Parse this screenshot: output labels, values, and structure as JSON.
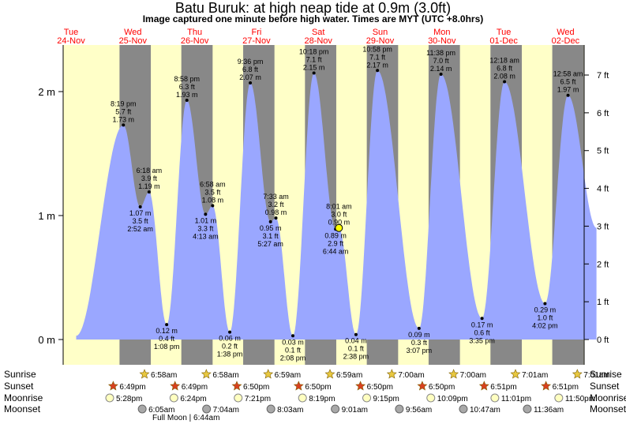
{
  "header": {
    "title": "Batu Buruk: at high  neap tide at 0.9m (3.0ft)",
    "subtitle": "Image captured one minute before high water. Times are MYT (UTC +8.0hrs)"
  },
  "colors": {
    "day": "#ffffc8",
    "night": "#888888",
    "tide_fill": "#9aa7ff",
    "date_text": "#ff0000",
    "sunrise_star": "#e8c840",
    "sunset_star": "#d84020",
    "moonrise": "#ffffc0",
    "moonset": "#a8a8a8",
    "current_marker": "#ffff00"
  },
  "chart_data": {
    "type": "area",
    "title": "Batu Buruk: at high  neap tide at 0.9m (3.0ft)",
    "xlim_hours": [
      -3,
      219
    ],
    "ylim_m": [
      -0.02,
      2.4
    ],
    "days": [
      {
        "dow": "Tue",
        "date": "24-Nov"
      },
      {
        "dow": "Wed",
        "date": "25-Nov"
      },
      {
        "dow": "Thu",
        "date": "26-Nov"
      },
      {
        "dow": "Fri",
        "date": "27-Nov"
      },
      {
        "dow": "Sat",
        "date": "28-Nov"
      },
      {
        "dow": "Sun",
        "date": "29-Nov"
      },
      {
        "dow": "Mon",
        "date": "30-Nov"
      },
      {
        "dow": "Tue",
        "date": "01-Dec"
      },
      {
        "dow": "Wed",
        "date": "02-Dec"
      }
    ],
    "left_axis_ticks": [
      {
        "value": 0,
        "label": "0 m"
      },
      {
        "value": 1,
        "label": "1 m"
      },
      {
        "value": 2,
        "label": "2 m"
      }
    ],
    "right_axis_ticks": [
      {
        "value": 0,
        "label": "0 ft"
      },
      {
        "value": 1,
        "label": "1 ft"
      },
      {
        "value": 2,
        "label": "2 ft"
      },
      {
        "value": 3,
        "label": "3 ft"
      },
      {
        "value": 4,
        "label": "4 ft"
      },
      {
        "value": 5,
        "label": "5 ft"
      },
      {
        "value": 6,
        "label": "6 ft"
      },
      {
        "value": 7,
        "label": "7 ft"
      }
    ],
    "tides": [
      {
        "h": 2.0,
        "m": 0.03,
        "type": "low",
        "labels": []
      },
      {
        "h": 20.32,
        "m": 1.73,
        "type": "high",
        "labels": [
          "8:19 pm",
          "5.7 ft",
          "1.73 m"
        ]
      },
      {
        "h": 26.87,
        "m": 1.07,
        "type": "low",
        "labels": [
          "1.07 m",
          "3.5 ft",
          "2:52 am"
        ]
      },
      {
        "h": 30.3,
        "m": 1.19,
        "type": "high",
        "labels": [
          "6:18 am",
          "3.9 ft",
          "1.19 m"
        ]
      },
      {
        "h": 37.13,
        "m": 0.12,
        "type": "low",
        "labels": [
          "0.12 m",
          "0.4 ft",
          "1:08 pm"
        ]
      },
      {
        "h": 44.97,
        "m": 1.93,
        "type": "high",
        "labels": [
          "8:58 pm",
          "6.3 ft",
          "1.93 m"
        ]
      },
      {
        "h": 52.22,
        "m": 1.01,
        "type": "low",
        "labels": [
          "1.01 m",
          "3.3 ft",
          "4:13 am"
        ]
      },
      {
        "h": 54.97,
        "m": 1.08,
        "type": "high",
        "labels": [
          "6:58 am",
          "3.5 ft",
          "1.08 m"
        ]
      },
      {
        "h": 61.63,
        "m": 0.06,
        "type": "low",
        "labels": [
          "0.06 m",
          "0.2 ft",
          "1:38 pm"
        ]
      },
      {
        "h": 69.6,
        "m": 2.07,
        "type": "high",
        "labels": [
          "9:36 pm",
          "6.8 ft",
          "2.07 m"
        ]
      },
      {
        "h": 77.45,
        "m": 0.95,
        "type": "low",
        "labels": [
          "0.95 m",
          "3.1 ft",
          "5:27 am"
        ]
      },
      {
        "h": 79.55,
        "m": 0.98,
        "type": "high",
        "labels": [
          "7:33 am",
          "3.2 ft",
          "0.98 m"
        ]
      },
      {
        "h": 86.13,
        "m": 0.03,
        "type": "low",
        "labels": [
          "0.03 m",
          "0.1 ft",
          "2:08 pm"
        ]
      },
      {
        "h": 94.3,
        "m": 2.15,
        "type": "high",
        "labels": [
          "10:18 pm",
          "7.1 ft",
          "2.15 m"
        ]
      },
      {
        "h": 102.73,
        "m": 0.89,
        "type": "low",
        "labels": [
          "0.89 m",
          "2.9 ft",
          "6:44 am"
        ]
      },
      {
        "h": 104.02,
        "m": 0.9,
        "type": "high",
        "labels": [
          "8:01 am",
          "3.0 ft",
          "0.90 m"
        ]
      },
      {
        "h": 110.63,
        "m": 0.04,
        "type": "low",
        "labels": [
          "0.04 m",
          "0.1 ft",
          "2:38 pm"
        ]
      },
      {
        "h": 118.97,
        "m": 2.17,
        "type": "high",
        "labels": [
          "10:58 pm",
          "7.1 ft",
          "2.17 m"
        ]
      },
      {
        "h": 135.12,
        "m": 0.09,
        "type": "low",
        "labels": [
          "0.09 m",
          "0.3 ft",
          "3:07 pm"
        ]
      },
      {
        "h": 143.63,
        "m": 2.14,
        "type": "high",
        "labels": [
          "11:38 pm",
          "7.0 ft",
          "2.14 m"
        ]
      },
      {
        "h": 159.58,
        "m": 0.17,
        "type": "low",
        "labels": [
          "0.17 m",
          "0.6 ft",
          "3:35 pm"
        ]
      },
      {
        "h": 168.3,
        "m": 2.08,
        "type": "high",
        "labels": [
          "12:18 am",
          "6.8 ft",
          "2.08 m"
        ]
      },
      {
        "h": 184.03,
        "m": 0.29,
        "type": "low",
        "labels": [
          "0.29 m",
          "1.0 ft",
          "4:02 pm"
        ]
      },
      {
        "h": 192.97,
        "m": 1.97,
        "type": "high",
        "labels": [
          "12:58 am",
          "6.5 ft",
          "1.97 m"
        ]
      },
      {
        "h": 204.0,
        "m": 0.9,
        "type": "low",
        "labels": []
      }
    ],
    "current_marker": {
      "h": 104.0,
      "m": 0.9
    }
  },
  "almanac": {
    "row_labels": [
      "Sunrise",
      "Sunset",
      "Moonrise",
      "Moonset"
    ],
    "sunrise": [
      {
        "h": 30.97,
        "label": "6:58am"
      },
      {
        "h": 54.97,
        "label": "6:58am"
      },
      {
        "h": 78.98,
        "label": "6:59am"
      },
      {
        "h": 102.98,
        "label": "6:59am"
      },
      {
        "h": 127.0,
        "label": "7:00am"
      },
      {
        "h": 151.0,
        "label": "7:00am"
      },
      {
        "h": 175.02,
        "label": "7:01am"
      },
      {
        "h": 199.02,
        "label": "7:01am"
      }
    ],
    "sunset": [
      {
        "h": 18.82,
        "label": "6:49pm"
      },
      {
        "h": 42.82,
        "label": "6:49pm"
      },
      {
        "h": 66.83,
        "label": "6:50pm"
      },
      {
        "h": 90.83,
        "label": "6:50pm"
      },
      {
        "h": 114.83,
        "label": "6:50pm"
      },
      {
        "h": 138.83,
        "label": "6:50pm"
      },
      {
        "h": 162.85,
        "label": "6:51pm"
      },
      {
        "h": 186.85,
        "label": "6:51pm"
      }
    ],
    "moonrise": [
      {
        "h": 17.47,
        "label": "5:28pm"
      },
      {
        "h": 42.4,
        "label": "6:24pm"
      },
      {
        "h": 67.35,
        "label": "7:21pm"
      },
      {
        "h": 92.32,
        "label": "8:19pm"
      },
      {
        "h": 117.25,
        "label": "9:15pm"
      },
      {
        "h": 142.15,
        "label": "10:09pm"
      },
      {
        "h": 167.02,
        "label": "11:01pm"
      },
      {
        "h": 191.83,
        "label": "11:50pm"
      }
    ],
    "moonset": [
      {
        "h": 30.08,
        "label": "6:05am"
      },
      {
        "h": 55.07,
        "label": "7:04am"
      },
      {
        "h": 80.05,
        "label": "8:03am"
      },
      {
        "h": 105.02,
        "label": "9:01am"
      },
      {
        "h": 129.93,
        "label": "9:56am"
      },
      {
        "h": 154.78,
        "label": "10:47am"
      },
      {
        "h": 179.6,
        "label": "11:36am"
      }
    ],
    "full_moon_label": "Full Moon | 6:44am"
  }
}
